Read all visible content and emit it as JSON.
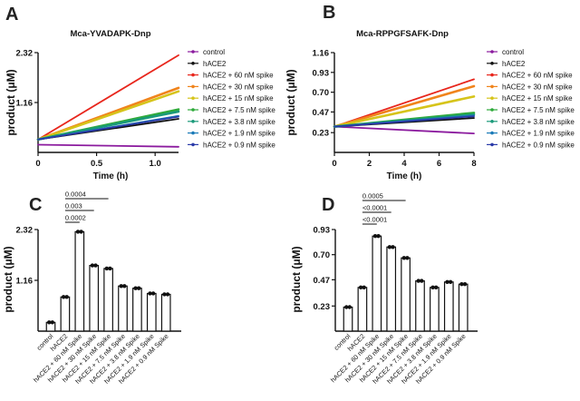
{
  "figure": {
    "letters": [
      "A",
      "B",
      "C",
      "D"
    ]
  },
  "legend_labels": [
    "control",
    "hACE2",
    "hACE2 + 60 nM spike",
    "hACE2 + 30 nM spike",
    "hACE2 + 15 nM spike",
    "hACE2 + 7.5 nM spike",
    "hACE2 + 3.8 nM spike",
    "hACE2 + 1.9 nM spike",
    "hACE2 + 0.9 nM spike"
  ],
  "series_colors": [
    "#8b1a9e",
    "#111111",
    "#e8261c",
    "#f0841c",
    "#d6c41a",
    "#2eaa3a",
    "#1a9a7a",
    "#1a7ab8",
    "#2a3aa8"
  ],
  "chart_data": [
    {
      "type": "line",
      "title": "Mca-YVADAPK-Dnp",
      "xlabel": "Time (h)",
      "ylabel": "product (μM)",
      "xlim": [
        0,
        1.2
      ],
      "ylim": [
        0,
        2.32
      ],
      "xticks": [
        "0",
        "0.5",
        "1.0"
      ],
      "yticks": [
        "1.16",
        "2.32"
      ],
      "x": [
        0,
        1.2
      ],
      "series": [
        {
          "name": "control",
          "values": [
            0.18,
            0.13
          ]
        },
        {
          "name": "hACE2",
          "values": [
            0.3,
            0.78
          ]
        },
        {
          "name": "hACE2 + 60 nM spike",
          "values": [
            0.3,
            2.26
          ]
        },
        {
          "name": "hACE2 + 30 nM spike",
          "values": [
            0.3,
            1.5
          ]
        },
        {
          "name": "hACE2 + 15 nM spike",
          "values": [
            0.3,
            1.42
          ]
        },
        {
          "name": "hACE2 + 7.5 nM spike",
          "values": [
            0.3,
            1.0
          ]
        },
        {
          "name": "hACE2 + 3.8 nM spike",
          "values": [
            0.3,
            0.95
          ]
        },
        {
          "name": "hACE2 + 1.9 nM spike",
          "values": [
            0.3,
            0.85
          ]
        },
        {
          "name": "hACE2 + 0.9 nM spike",
          "values": [
            0.3,
            0.83
          ]
        }
      ]
    },
    {
      "type": "line",
      "title": "Mca-RPPGFSAFK-Dnp",
      "xlabel": "Time (h)",
      "ylabel": "product (μM)",
      "xlim": [
        0,
        8
      ],
      "ylim": [
        0,
        1.16
      ],
      "xticks": [
        "0",
        "2",
        "4",
        "6",
        "8"
      ],
      "yticks": [
        "0.23",
        "0.47",
        "0.70",
        "0.93",
        "1.16"
      ],
      "x": [
        0,
        8
      ],
      "series": [
        {
          "name": "control",
          "values": [
            0.3,
            0.22
          ]
        },
        {
          "name": "hACE2",
          "values": [
            0.3,
            0.4
          ]
        },
        {
          "name": "hACE2 + 60 nM spike",
          "values": [
            0.3,
            0.85
          ]
        },
        {
          "name": "hACE2 + 30 nM spike",
          "values": [
            0.3,
            0.77
          ]
        },
        {
          "name": "hACE2 + 15 nM spike",
          "values": [
            0.3,
            0.65
          ]
        },
        {
          "name": "hACE2 + 7.5 nM spike",
          "values": [
            0.3,
            0.46
          ]
        },
        {
          "name": "hACE2 + 3.8 nM spike",
          "values": [
            0.3,
            0.44
          ]
        },
        {
          "name": "hACE2 + 1.9 nM spike",
          "values": [
            0.3,
            0.43
          ]
        },
        {
          "name": "hACE2 + 0.9 nM spike",
          "values": [
            0.3,
            0.42
          ]
        }
      ]
    },
    {
      "type": "bar",
      "xlabel": "",
      "ylabel": "product (μM)",
      "ylim": [
        0,
        2.32
      ],
      "yticks": [
        "1.16",
        "2.32"
      ],
      "categories": [
        "control",
        "hACE2",
        "hACE2 + 60 nM Spike",
        "hACE2 + 30 nM Spike",
        "hACE2 + 15 nM Spike",
        "hACE2 + 7.5 nM Spike",
        "hACE2 + 3.8 nM Spike",
        "hACE2 + 1.9 nM Spike",
        "hACE2 + 0.9 nM Spike"
      ],
      "values": [
        0.2,
        0.78,
        2.27,
        1.5,
        1.43,
        1.03,
        0.98,
        0.86,
        0.84
      ],
      "comparisons": [
        {
          "from": 1,
          "to": 4,
          "p": "0.0004"
        },
        {
          "from": 1,
          "to": 3,
          "p": "0.003"
        },
        {
          "from": 1,
          "to": 2,
          "p": "0.0002"
        }
      ]
    },
    {
      "type": "bar",
      "xlabel": "",
      "ylabel": "product (μM)",
      "ylim": [
        0,
        0.93
      ],
      "yticks": [
        "0.23",
        "0.47",
        "0.70",
        "0.93"
      ],
      "categories": [
        "control",
        "hACE2",
        "hACE2 + 60 nM Spike",
        "hACE2 + 30 nM Spike",
        "hACE2 + 15 nM Spike",
        "hACE2 + 7.5 nM Spike",
        "hACE2 + 3.8 nM Spike",
        "hACE2 + 1.9 nM Spike",
        "hACE2 + 0.9 nM Spike"
      ],
      "values": [
        0.22,
        0.4,
        0.87,
        0.77,
        0.67,
        0.46,
        0.4,
        0.45,
        0.43
      ],
      "comparisons": [
        {
          "from": 1,
          "to": 4,
          "p": "0.0005"
        },
        {
          "from": 1,
          "to": 3,
          "p": "<0.0001"
        },
        {
          "from": 1,
          "to": 2,
          "p": "<0.0001"
        }
      ]
    }
  ]
}
